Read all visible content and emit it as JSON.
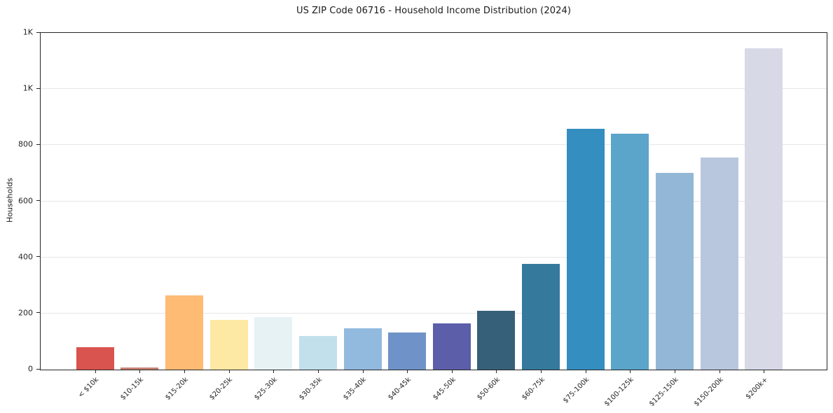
{
  "page": {
    "background": "#ffffff"
  },
  "chart_data": {
    "type": "bar",
    "title": "US ZIP Code 06716 - Household Income Distribution (2024)",
    "xlabel": "",
    "ylabel": "Households",
    "categories": [
      "< $10k",
      "$10-15k",
      "$15-20k",
      "$20-25k",
      "$25-30k",
      "$30-35k",
      "$35-40k",
      "$40-45k",
      "$45-50k",
      "$50-60k",
      "$60-75k",
      "$75-100k",
      "$100-125k",
      "$125-150k",
      "$150-200k",
      "$200k+"
    ],
    "values": [
      80,
      8,
      264,
      177,
      186,
      119,
      147,
      132,
      164,
      210,
      376,
      858,
      840,
      700,
      755,
      1144
    ],
    "bar_colors": [
      "#d9534f",
      "#c67f72",
      "#fdbb74",
      "#fde8a4",
      "#e7f2f5",
      "#c2e0ec",
      "#92bade",
      "#6f93c8",
      "#5c5ea9",
      "#366079",
      "#35799d",
      "#358ec0",
      "#5ba4ca",
      "#93b7d6",
      "#b9c7de",
      "#d7d9e7"
    ],
    "ylim": [
      0,
      1200
    ],
    "yticks": [
      {
        "value": 0,
        "label": "0"
      },
      {
        "value": 200,
        "label": "200"
      },
      {
        "value": 400,
        "label": "400"
      },
      {
        "value": 600,
        "label": "600"
      },
      {
        "value": 800,
        "label": "800"
      },
      {
        "value": 1000,
        "label": "1K"
      },
      {
        "value": 1200,
        "label": "1K"
      }
    ],
    "grid": "horizontal",
    "grid_color": "#e7e7e7",
    "axis_color": "#262626",
    "legend": "none"
  }
}
